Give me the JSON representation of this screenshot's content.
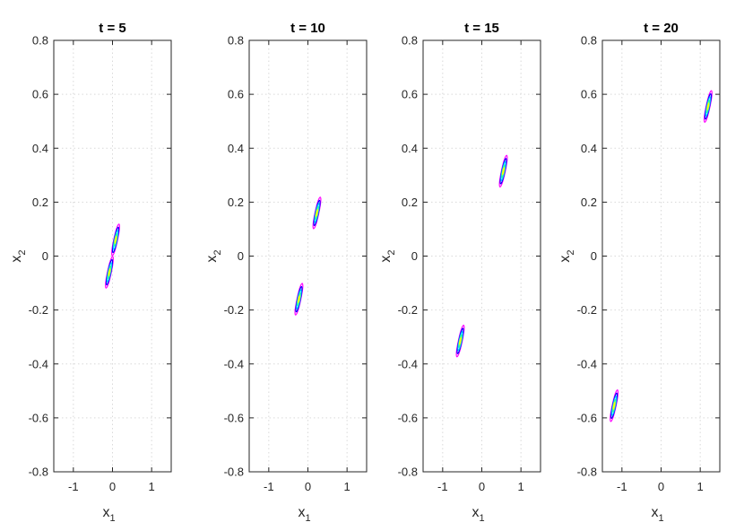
{
  "chart_data": [
    {
      "type": "contour",
      "title": "t = 5",
      "xlabel": "x",
      "xlabel_sub": "1",
      "ylabel": "x",
      "ylabel_sub": "2",
      "xlim": [
        -1.5,
        1.5
      ],
      "ylim": [
        -0.8,
        0.8
      ],
      "xticks": [
        -1,
        0,
        1
      ],
      "yticks": [
        -0.8,
        -0.6,
        -0.4,
        -0.2,
        0,
        0.2,
        0.4,
        0.6,
        0.8
      ],
      "grid": true,
      "blobs": [
        {
          "x": 0.08,
          "y": 0.06,
          "sx": 0.1,
          "sy": 0.06
        },
        {
          "x": -0.08,
          "y": -0.06,
          "sx": 0.1,
          "sy": 0.06
        }
      ]
    },
    {
      "type": "contour",
      "title": "t = 10",
      "xlabel": "x",
      "xlabel_sub": "1",
      "ylabel": "x",
      "ylabel_sub": "2",
      "xlim": [
        -1.5,
        1.5
      ],
      "ylim": [
        -0.8,
        0.8
      ],
      "xticks": [
        -1,
        0,
        1
      ],
      "yticks": [
        -0.8,
        -0.6,
        -0.4,
        -0.2,
        0,
        0.2,
        0.4,
        0.6,
        0.8
      ],
      "grid": true,
      "blobs": [
        {
          "x": 0.23,
          "y": 0.16,
          "sx": 0.1,
          "sy": 0.06
        },
        {
          "x": -0.23,
          "y": -0.16,
          "sx": 0.1,
          "sy": 0.06
        }
      ]
    },
    {
      "type": "contour",
      "title": "t = 15",
      "xlabel": "x",
      "xlabel_sub": "1",
      "ylabel": "x",
      "ylabel_sub": "2",
      "xlim": [
        -1.5,
        1.5
      ],
      "ylim": [
        -0.8,
        0.8
      ],
      "xticks": [
        -1,
        0,
        1
      ],
      "yticks": [
        -0.8,
        -0.6,
        -0.4,
        -0.2,
        0,
        0.2,
        0.4,
        0.6,
        0.8
      ],
      "grid": true,
      "blobs": [
        {
          "x": 0.55,
          "y": 0.315,
          "sx": 0.1,
          "sy": 0.06
        },
        {
          "x": -0.55,
          "y": -0.315,
          "sx": 0.1,
          "sy": 0.06
        }
      ]
    },
    {
      "type": "contour",
      "title": "t = 20",
      "xlabel": "x",
      "xlabel_sub": "1",
      "ylabel": "x",
      "ylabel_sub": "2",
      "xlim": [
        -1.5,
        1.5
      ],
      "ylim": [
        -0.8,
        0.8
      ],
      "xticks": [
        -1,
        0,
        1
      ],
      "yticks": [
        -0.8,
        -0.6,
        -0.4,
        -0.2,
        0,
        0.2,
        0.4,
        0.6,
        0.8
      ],
      "grid": true,
      "blobs": [
        {
          "x": 1.2,
          "y": 0.555,
          "sx": 0.1,
          "sy": 0.06
        },
        {
          "x": -1.2,
          "y": -0.555,
          "sx": 0.1,
          "sy": 0.06
        }
      ]
    }
  ],
  "colors": {
    "contour_levels": [
      "#ff00ff",
      "#0000ff",
      "#00ccff",
      "#33ff99",
      "#ffff00"
    ]
  }
}
